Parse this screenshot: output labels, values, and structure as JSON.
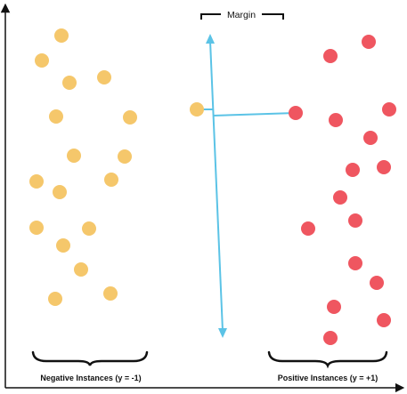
{
  "margin_label": "Margin",
  "negative_label": "Negative Instances (y = -1)",
  "positive_label": "Positive Instances (y = +1)",
  "colors": {
    "negative": "#f5c76b",
    "positive": "#ef5660",
    "hyperplane": "#5bc3e6",
    "axis": "#111111"
  }
}
